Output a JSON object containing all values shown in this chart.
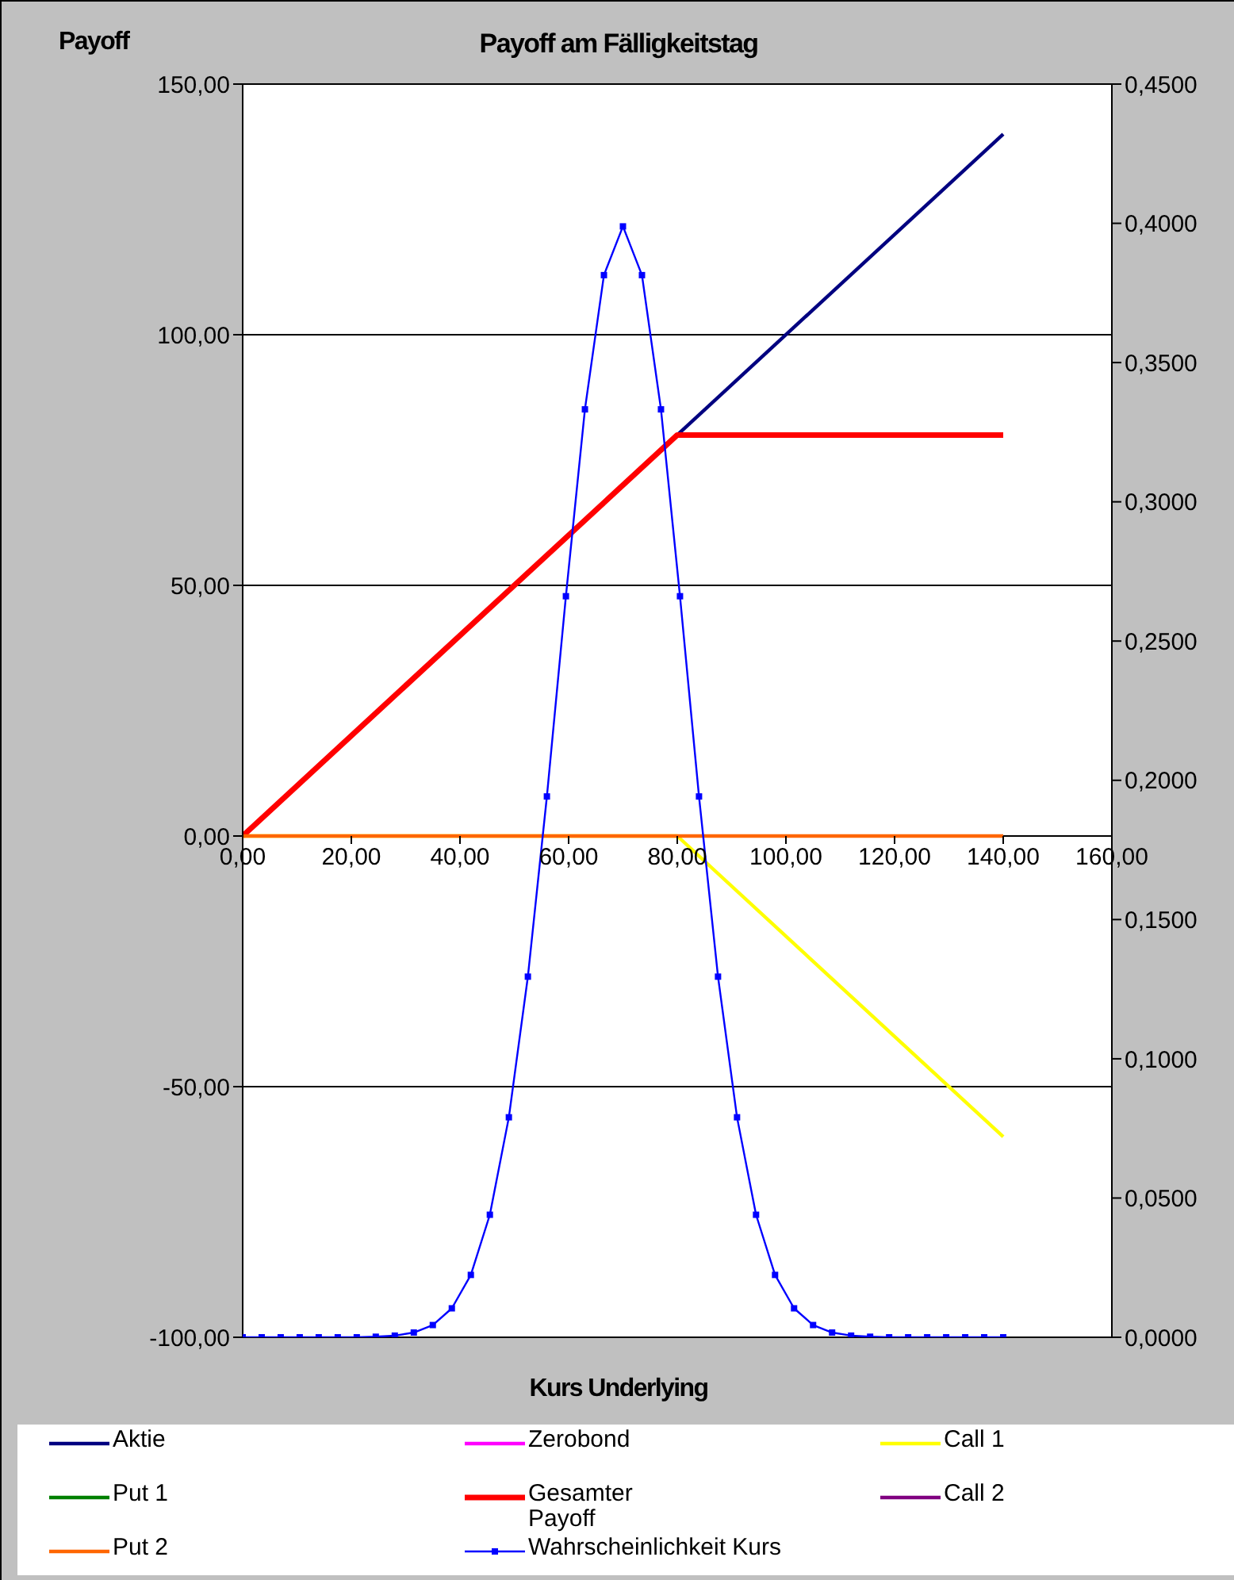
{
  "chart_data": {
    "type": "line",
    "title": "Payoff am Fälligkeitstag",
    "ylabel": "Payoff",
    "xlabel": "Kurs Underlying",
    "xlim": [
      0,
      160
    ],
    "xticks": [
      {
        "value": 0,
        "label": "0,00"
      },
      {
        "value": 20,
        "label": "20,00"
      },
      {
        "value": 40,
        "label": "40,00"
      },
      {
        "value": 60,
        "label": "60,00"
      },
      {
        "value": 80,
        "label": "80,00"
      },
      {
        "value": 100,
        "label": "100,00"
      },
      {
        "value": 120,
        "label": "120,00"
      },
      {
        "value": 140,
        "label": "140,00"
      },
      {
        "value": 160,
        "label": "160,00"
      }
    ],
    "ylim": [
      -100,
      150
    ],
    "yticks": [
      {
        "value": -100,
        "label": "-100,00"
      },
      {
        "value": -50,
        "label": "-50,00"
      },
      {
        "value": 0,
        "label": "0,00"
      },
      {
        "value": 50,
        "label": "50,00"
      },
      {
        "value": 100,
        "label": "100,00"
      },
      {
        "value": 150,
        "label": "150,00"
      }
    ],
    "y2lim": [
      0,
      0.45
    ],
    "y2ticks": [
      {
        "value": 0,
        "label": "0,0000"
      },
      {
        "value": 0.05,
        "label": "0,0500"
      },
      {
        "value": 0.1,
        "label": "0,1000"
      },
      {
        "value": 0.15,
        "label": "0,1500"
      },
      {
        "value": 0.2,
        "label": "0,2000"
      },
      {
        "value": 0.25,
        "label": "0,2500"
      },
      {
        "value": 0.3,
        "label": "0,3000"
      },
      {
        "value": 0.35,
        "label": "0,3500"
      },
      {
        "value": 0.4,
        "label": "0,4000"
      },
      {
        "value": 0.45,
        "label": "0,4500"
      }
    ],
    "grid": "y",
    "legend": "bottom",
    "marker": "none",
    "line_style": "solid",
    "series": [
      {
        "name": "Aktie",
        "color": "#000080",
        "x": [
          80,
          140
        ],
        "values": [
          80,
          140
        ]
      },
      {
        "name": "Zerobond",
        "color": "#ff00ff"
      },
      {
        "name": "Call 1",
        "color": "#ffff00",
        "x": [
          0,
          80,
          140
        ],
        "values": [
          0,
          0,
          -60
        ]
      },
      {
        "name": "Put 1",
        "color": "#008000"
      },
      {
        "name": "Gesamter Payoff",
        "color": "#ff0000",
        "x": [
          0,
          80,
          140
        ],
        "values": [
          0,
          80,
          80
        ]
      },
      {
        "name": "Call 2",
        "color": "#800080"
      },
      {
        "name": "Put 2",
        "color": "#ff6600",
        "x": [
          0,
          140
        ],
        "values": [
          0,
          0
        ]
      },
      {
        "name": "Wahrscheinlichkeit Kurs",
        "color": "#0000ff",
        "axis": "y2",
        "marker": "square",
        "x": [
          0,
          3.5,
          7,
          10.5,
          14,
          17.5,
          21,
          24.5,
          28,
          31.5,
          35,
          38.5,
          42,
          45.5,
          49,
          52.5,
          56,
          59.5,
          63,
          66.5,
          70,
          73.5,
          77,
          80.5,
          84,
          87.5,
          91,
          94.5,
          98,
          101.5,
          105,
          108.5,
          112,
          115.5,
          119,
          122.5,
          126,
          129.5,
          133,
          136.5,
          140
        ],
        "values": [
          0,
          0,
          0,
          0,
          0,
          0,
          0,
          0.0002,
          0.0006,
          0.0017,
          0.0044,
          0.0104,
          0.0224,
          0.044,
          0.079,
          0.1295,
          0.1942,
          0.2661,
          0.3332,
          0.3814,
          0.3989,
          0.3814,
          0.3332,
          0.2661,
          0.1942,
          0.1295,
          0.079,
          0.044,
          0.0224,
          0.0104,
          0.0044,
          0.0017,
          0.0006,
          0.0002,
          0,
          0,
          0,
          0,
          0,
          0,
          0
        ]
      }
    ]
  }
}
